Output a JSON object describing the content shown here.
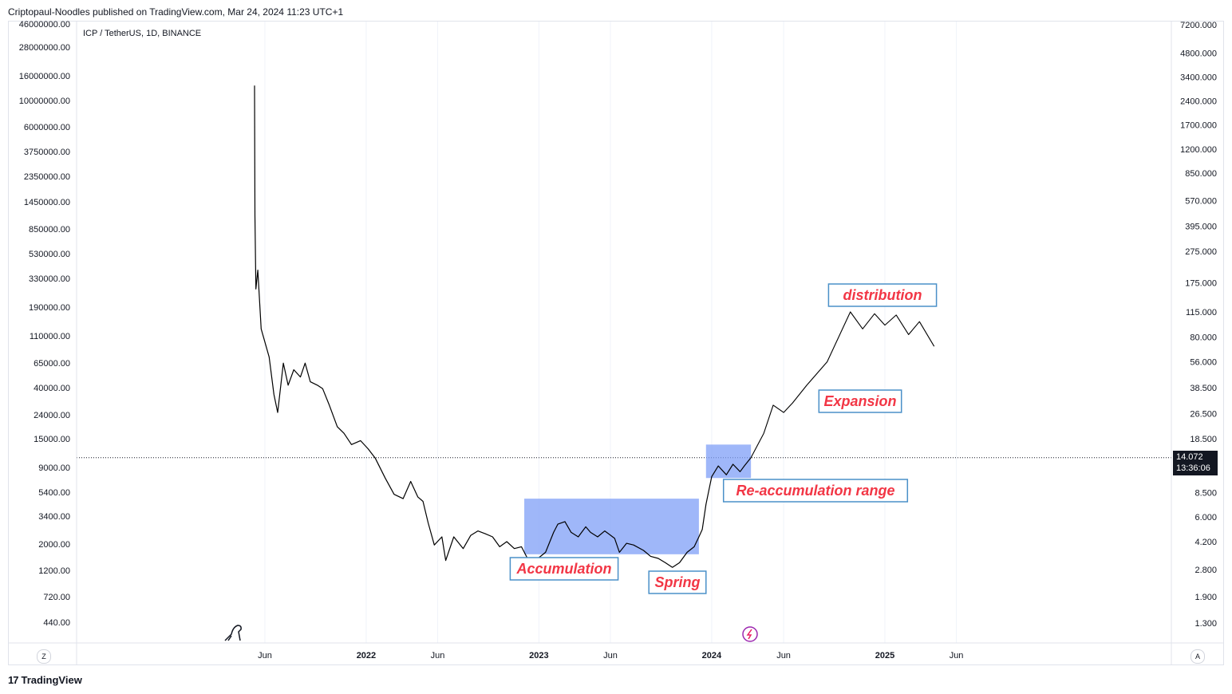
{
  "header": {
    "published": "Criptopaul-Noodles published on TradingView.com, Mar 24, 2024 11:23 UTC+1"
  },
  "symbol": "ICP / TetherUS, 1D, BINANCE",
  "footer": {
    "logo": "17",
    "brand": "TradingView"
  },
  "buttons": {
    "left": "Z",
    "right": "A"
  },
  "price": {
    "last": "14.072",
    "countdown": "13:36:06"
  },
  "colors": {
    "line": "#000000",
    "box": "#7f9ff7",
    "annotation_text": "#f23645",
    "annotation_border": "#4a90c8",
    "price_tag": "#131722"
  },
  "chart_data": {
    "type": "line",
    "title": "",
    "y_scale": "log",
    "left_axis_ticks": [
      "46000000.00",
      "28000000.00",
      "16000000.00",
      "10000000.00",
      "6000000.00",
      "3750000.00",
      "2350000.00",
      "1450000.00",
      "850000.00",
      "530000.00",
      "330000.00",
      "190000.00",
      "110000.00",
      "65000.00",
      "40000.00",
      "24000.00",
      "15000.00",
      "9000.00",
      "5400.00",
      "3400.00",
      "2000.00",
      "1200.00",
      "720.00",
      "440.00"
    ],
    "right_axis_ticks": [
      "7200.000",
      "4800.000",
      "3400.000",
      "2400.000",
      "1700.000",
      "1200.000",
      "850.000",
      "570.000",
      "395.000",
      "275.000",
      "175.000",
      "115.000",
      "80.000",
      "56.000",
      "38.500",
      "26.500",
      "18.500",
      "8.500",
      "6.000",
      "4.200",
      "2.800",
      "1.900",
      "1.300"
    ],
    "x_axis_ticks": [
      {
        "label": "Jun",
        "bold": false
      },
      {
        "label": "2022",
        "bold": true
      },
      {
        "label": "Jun",
        "bold": false
      },
      {
        "label": "2023",
        "bold": true
      },
      {
        "label": "Jun",
        "bold": false
      },
      {
        "label": "2024",
        "bold": true
      },
      {
        "label": "Jun",
        "bold": false
      },
      {
        "label": "2025",
        "bold": true
      },
      {
        "label": "Jun",
        "bold": false
      }
    ],
    "x_range": [
      "2021-05-10",
      "2025-07-01"
    ],
    "right_axis_range": [
      1.0,
      7200
    ],
    "series": [
      {
        "x": [
          "2021-05-10",
          "2021-05-11",
          "2021-05-13",
          "2021-05-17",
          "2021-05-24",
          "2021-06-10",
          "2021-06-20",
          "2021-06-28",
          "2021-07-10",
          "2021-07-20",
          "2021-08-01",
          "2021-08-15",
          "2021-08-25",
          "2021-09-05",
          "2021-09-20",
          "2021-10-01",
          "2021-10-15",
          "2021-11-01",
          "2021-11-15",
          "2021-12-01",
          "2021-12-20",
          "2022-01-05",
          "2022-01-20",
          "2022-02-10",
          "2022-03-01",
          "2022-03-20",
          "2022-04-05",
          "2022-04-20",
          "2022-05-01",
          "2022-05-12",
          "2022-05-25",
          "2022-06-10",
          "2022-06-18",
          "2022-07-05",
          "2022-07-25",
          "2022-08-10",
          "2022-08-25",
          "2022-09-10",
          "2022-09-25",
          "2022-10-10",
          "2022-10-25",
          "2022-11-10",
          "2022-11-25",
          "2022-12-10",
          "2022-12-30",
          "2023-01-15",
          "2023-02-01",
          "2023-02-10",
          "2023-02-25",
          "2023-03-10",
          "2023-03-25",
          "2023-04-10",
          "2023-04-20",
          "2023-05-05",
          "2023-05-20",
          "2023-06-10",
          "2023-06-20",
          "2023-07-05",
          "2023-07-20",
          "2023-08-10",
          "2023-08-25",
          "2023-09-10",
          "2023-09-25",
          "2023-10-10",
          "2023-10-25",
          "2023-11-10",
          "2023-11-25",
          "2023-12-05",
          "2023-12-12",
          "2023-12-20",
          "2024-01-01",
          "2024-01-15",
          "2024-02-01",
          "2024-02-15",
          "2024-03-01",
          "2024-03-10",
          "2024-03-24"
        ],
        "y": [
          3000,
          460,
          160,
          210,
          90,
          60,
          35,
          27,
          55,
          40,
          50,
          45,
          55,
          42,
          40,
          38,
          30,
          22,
          20,
          17,
          18,
          16,
          14,
          10.5,
          8.3,
          7.8,
          10.0,
          8.0,
          7.5,
          5.5,
          4.0,
          4.5,
          3.2,
          4.5,
          3.8,
          4.6,
          4.9,
          4.7,
          4.5,
          3.9,
          4.2,
          3.8,
          3.9,
          3.2,
          3.3,
          3.6,
          4.8,
          5.4,
          5.6,
          4.8,
          4.5,
          5.2,
          4.8,
          4.5,
          4.9,
          4.4,
          3.6,
          4.1,
          4.0,
          3.7,
          3.4,
          3.3,
          3.1,
          2.9,
          3.1,
          3.6,
          3.9,
          4.5,
          5.0,
          7.2,
          10.7,
          12.5,
          11.0,
          12.8,
          11.5,
          12.5,
          14.072
        ]
      },
      {
        "x": [
          "2024-03-24",
          "2024-04-20",
          "2024-05-10",
          "2024-06-01",
          "2024-06-20",
          "2024-07-20",
          "2024-09-01",
          "2024-10-20",
          "2024-11-15",
          "2024-12-10",
          "2025-01-01",
          "2025-01-25",
          "2025-02-20",
          "2025-03-15",
          "2025-04-15"
        ],
        "y": [
          14.072,
          20,
          30,
          27,
          31,
          40,
          56,
          115,
          90,
          112,
          95,
          110,
          83,
          100,
          70
        ]
      }
    ],
    "annotations": [
      {
        "label": "Accumulation",
        "x0": "2022-12-01",
        "x1": "2023-12-05",
        "y0": 3.5,
        "y1": 7.8
      },
      {
        "label": "Spring",
        "at": "2023-09-20",
        "y": 2.2
      },
      {
        "label": "Re-accumulation range",
        "x0": "2023-12-20",
        "x1": "2024-03-24",
        "y0": 10.5,
        "y1": 17
      },
      {
        "label": "Expansion",
        "at": "2024-09-01",
        "y": 35
      },
      {
        "label": "distribution",
        "at": "2024-12-20",
        "y": 145
      }
    ]
  }
}
